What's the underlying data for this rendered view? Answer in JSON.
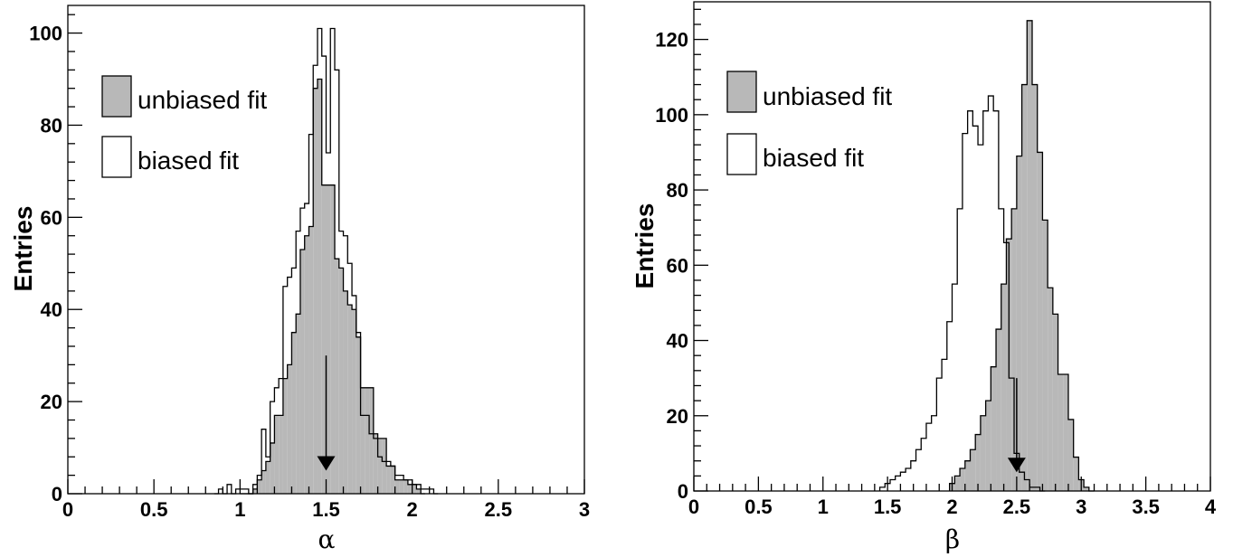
{
  "colors": {
    "unbiased_fill": "#b8b8b8",
    "outline": "#000000",
    "background": "#ffffff"
  },
  "chart_data": [
    {
      "type": "histogram",
      "xlabel": "α",
      "ylabel": "Entries",
      "xlim": [
        0,
        3
      ],
      "ylim": [
        0,
        106
      ],
      "xticks": [
        "0",
        "0.5",
        "1",
        "1.5",
        "2",
        "2.5",
        "3"
      ],
      "xtick_values": [
        0,
        0.5,
        1,
        1.5,
        2,
        2.5,
        3
      ],
      "yticks": [
        "0",
        "20",
        "40",
        "60",
        "80",
        "100"
      ],
      "ytick_values": [
        0,
        20,
        40,
        60,
        80,
        100
      ],
      "bin_width": 0.025,
      "legend_position": "top-left",
      "arrow_x": 1.5,
      "arrow_y_top": 30,
      "arrow_y_tip": 5,
      "series": [
        {
          "name": "unbiased fit",
          "style": "filled",
          "x_start": 1.0,
          "values": [
            0,
            0,
            0,
            1,
            3,
            5,
            7,
            11,
            17,
            17,
            25,
            28,
            35,
            39,
            53,
            56,
            58,
            88,
            90,
            67,
            67,
            67,
            51,
            49,
            44,
            41,
            40,
            34,
            23,
            23,
            23,
            13,
            12,
            12,
            6,
            6,
            3,
            3,
            3,
            2,
            2,
            1,
            0
          ]
        },
        {
          "name": "biased fit",
          "style": "outline",
          "x_start": 0.85,
          "values": [
            0,
            1,
            0,
            2,
            0,
            1,
            1,
            1,
            0,
            2,
            4,
            14,
            8,
            20,
            23,
            25,
            45,
            47,
            49,
            57,
            62,
            63,
            78,
            93,
            101,
            95,
            74,
            101,
            92,
            57,
            56,
            50,
            43,
            35,
            17,
            17,
            13,
            12,
            8,
            7,
            7,
            6,
            4,
            4,
            3,
            3,
            2,
            2,
            1,
            1,
            1,
            0
          ]
        }
      ]
    },
    {
      "type": "histogram",
      "xlabel": "β",
      "ylabel": "Entries",
      "xlim": [
        0,
        4
      ],
      "ylim": [
        0,
        130
      ],
      "xticks": [
        "0",
        "0.5",
        "1",
        "1.5",
        "2",
        "2.5",
        "3",
        "3.5",
        "4"
      ],
      "xtick_values": [
        0,
        0.5,
        1,
        1.5,
        2,
        2.5,
        3,
        3.5,
        4
      ],
      "yticks": [
        "0",
        "20",
        "40",
        "60",
        "80",
        "100",
        "120"
      ],
      "ytick_values": [
        0,
        20,
        40,
        60,
        80,
        100,
        120
      ],
      "bin_width": 0.04,
      "legend_position": "top-left",
      "arrow_x": 2.5,
      "arrow_y_top": 30,
      "arrow_y_tip": 5,
      "series": [
        {
          "name": "unbiased fit",
          "style": "filled",
          "x_start": 1.98,
          "values": [
            2,
            4,
            6,
            8,
            11,
            15,
            20,
            24,
            33,
            43,
            55,
            67,
            75,
            89,
            108,
            125,
            108,
            90,
            72,
            54,
            47,
            31,
            31,
            19,
            9,
            3,
            1,
            0
          ]
        },
        {
          "name": "biased fit",
          "style": "outline",
          "x_start": 1.44,
          "values": [
            1,
            2,
            3,
            4,
            5,
            6,
            8,
            11,
            14,
            18,
            20,
            30,
            35,
            45,
            55,
            75,
            95,
            101,
            97,
            92,
            101,
            105,
            101,
            75,
            66,
            30,
            10,
            5,
            3,
            1,
            1,
            0
          ]
        }
      ]
    }
  ]
}
